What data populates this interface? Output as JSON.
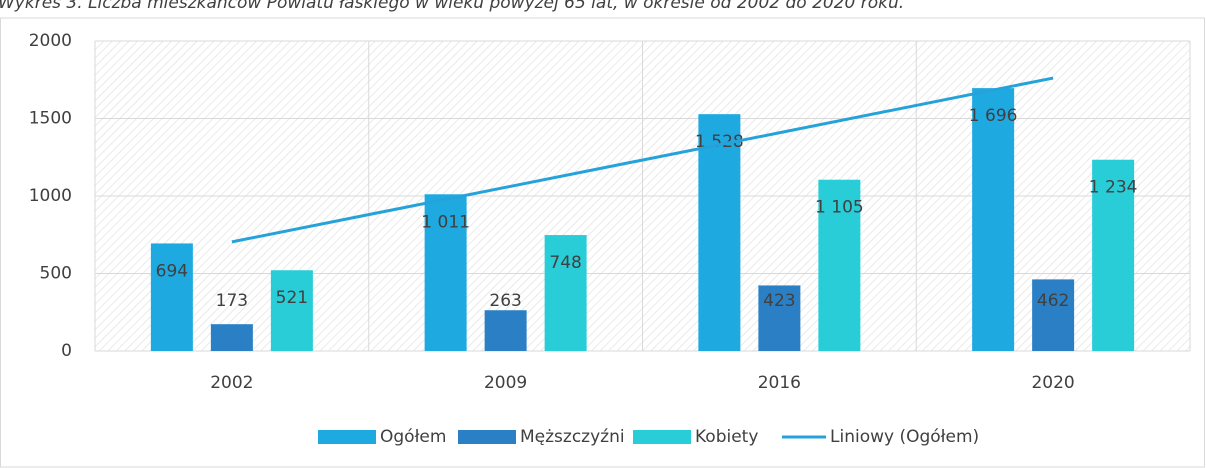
{
  "chart_data": {
    "type": "bar",
    "title": "Wykres 3. Liczba mieszkańców Powiatu łaskiego w wieku powyżej 65 lat, w okresie od 2002 do 2020 roku.",
    "categories": [
      "2002",
      "2009",
      "2016",
      "2020"
    ],
    "series": [
      {
        "name": "Ogółem",
        "color": "#1fa9e1",
        "values": [
          694,
          1011,
          1528,
          1696
        ],
        "value_labels": [
          "694",
          "1 011",
          "1 528",
          "1 696"
        ]
      },
      {
        "name": "Męższczyźni",
        "color": "#2b80c5",
        "values": [
          173,
          263,
          423,
          462
        ],
        "value_labels": [
          "173",
          "263",
          "423",
          "462"
        ]
      },
      {
        "name": "Kobiety",
        "color": "#28cdd7",
        "values": [
          521,
          748,
          1105,
          1234
        ],
        "value_labels": [
          "521",
          "748",
          "1 105",
          "1 234"
        ]
      },
      {
        "name": "Liniowy (Ogółem)",
        "color": "#26a2da",
        "type": "line",
        "values": [
          704,
          1056,
          1408,
          1761
        ]
      }
    ],
    "ylim": [
      0,
      2000
    ],
    "yticks": [
      0,
      500,
      1000,
      1500,
      2000
    ],
    "grid": true
  }
}
